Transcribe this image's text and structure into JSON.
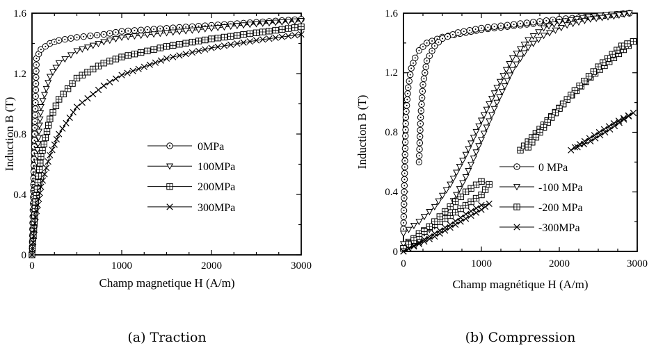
{
  "chart_data": [
    {
      "type": "line",
      "caption": "(a) Traction",
      "xlabel": "Champ magnetique H (A/m)",
      "ylabel": "Induction B (T)",
      "xlim": [
        0,
        3000
      ],
      "ylim": [
        0,
        1.6
      ],
      "xticks": [
        "0",
        "1000",
        "2000",
        "3000"
      ],
      "yticks": [
        "0",
        "0.4",
        "0.8",
        "1.2",
        "1.6"
      ],
      "legend_position": "center-right",
      "series": [
        {
          "name": "0MPa",
          "marker": "circle",
          "x": [
            0,
            20,
            50,
            100,
            200,
            300,
            500,
            800,
            1000,
            1500,
            2000,
            2500,
            3000
          ],
          "y": [
            0,
            0.55,
            1.3,
            1.36,
            1.4,
            1.42,
            1.44,
            1.46,
            1.48,
            1.5,
            1.52,
            1.54,
            1.56
          ]
        },
        {
          "name": "100MPa",
          "marker": "triangle-down",
          "x": [
            0,
            30,
            100,
            200,
            300,
            500,
            800,
            1000,
            1500,
            2000,
            2500,
            3000
          ],
          "y": [
            0,
            0.45,
            0.98,
            1.18,
            1.27,
            1.35,
            1.41,
            1.44,
            1.47,
            1.5,
            1.53,
            1.55
          ]
        },
        {
          "name": "200MPa",
          "marker": "square-plus",
          "x": [
            0,
            40,
            100,
            200,
            300,
            500,
            800,
            1000,
            1500,
            2000,
            2500,
            3000
          ],
          "y": [
            0,
            0.35,
            0.65,
            0.9,
            1.03,
            1.17,
            1.27,
            1.31,
            1.38,
            1.43,
            1.47,
            1.51
          ]
        },
        {
          "name": "300MPa",
          "marker": "x",
          "x": [
            0,
            40,
            100,
            200,
            300,
            500,
            800,
            1000,
            1500,
            2000,
            2500,
            3000
          ],
          "y": [
            0,
            0.25,
            0.45,
            0.66,
            0.8,
            0.98,
            1.12,
            1.19,
            1.3,
            1.37,
            1.42,
            1.46
          ]
        }
      ]
    },
    {
      "type": "line",
      "caption": "(b) Compression",
      "xlabel": "Champ magnétique H (A/m)",
      "ylabel": "Induction B (T)",
      "xlim": [
        0,
        3000
      ],
      "ylim": [
        0,
        1.6
      ],
      "xticks": [
        "0",
        "1000",
        "2000",
        "3000"
      ],
      "yticks": [
        "0",
        "0.4",
        "0.8",
        "1.2",
        "1.6"
      ],
      "legend_position": "bottom-right",
      "series": [
        {
          "name": "0 MPa",
          "marker": "circle",
          "loop": true,
          "x": [
            0,
            30,
            60,
            100,
            150,
            200,
            300,
            500,
            800,
            1000,
            1500,
            2000,
            2500,
            2900,
            2500,
            2000,
            1500,
            1000,
            700,
            500,
            400,
            300,
            250,
            220,
            200
          ],
          "y": [
            0.15,
            0.9,
            1.1,
            1.23,
            1.3,
            1.35,
            1.4,
            1.44,
            1.47,
            1.49,
            1.52,
            1.55,
            1.58,
            1.6,
            1.58,
            1.56,
            1.53,
            1.5,
            1.47,
            1.43,
            1.38,
            1.28,
            1.12,
            0.9,
            0.6
          ]
        },
        {
          "name": "-100 MPa",
          "marker": "triangle-down",
          "loop": true,
          "x": [
            0,
            200,
            400,
            600,
            800,
            1000,
            1200,
            1400,
            1600,
            1800,
            2000,
            2300,
            2600,
            2900,
            2700,
            2400,
            2100,
            1800,
            1600,
            1400,
            1200,
            1000,
            800,
            600,
            400,
            200,
            0
          ],
          "y": [
            0.12,
            0.2,
            0.3,
            0.45,
            0.65,
            0.88,
            1.1,
            1.3,
            1.42,
            1.5,
            1.54,
            1.57,
            1.59,
            1.6,
            1.58,
            1.56,
            1.52,
            1.45,
            1.37,
            1.22,
            1.0,
            0.75,
            0.5,
            0.3,
            0.17,
            0.1,
            0.05
          ]
        },
        {
          "name": "-200 MPa",
          "marker": "square-plus",
          "loop": true,
          "split": true,
          "x": [
            0,
            200,
            400,
            600,
            800,
            1000,
            1100,
            1000,
            800,
            600,
            400,
            200,
            0,
            null,
            1500,
            1800,
            2100,
            2400,
            2700,
            2950,
            2800,
            2500,
            2200,
            1900,
            1600
          ],
          "y": [
            0.02,
            0.12,
            0.18,
            0.24,
            0.31,
            0.38,
            0.45,
            0.47,
            0.4,
            0.3,
            0.2,
            0.1,
            0.02,
            null,
            0.68,
            0.85,
            1.02,
            1.17,
            1.3,
            1.41,
            1.38,
            1.24,
            1.08,
            0.9,
            0.7
          ]
        },
        {
          "name": "-300MPa",
          "marker": "x",
          "loop": true,
          "split": true,
          "x": [
            0,
            200,
            400,
            600,
            800,
            1000,
            1100,
            1000,
            800,
            600,
            400,
            200,
            0,
            null,
            2150,
            2400,
            2650,
            2950,
            2700,
            2450,
            2200
          ],
          "y": [
            0,
            0.05,
            0.1,
            0.16,
            0.22,
            0.28,
            0.32,
            0.31,
            0.25,
            0.18,
            0.12,
            0.06,
            0,
            null,
            0.68,
            0.74,
            0.82,
            0.93,
            0.86,
            0.78,
            0.7
          ]
        }
      ]
    }
  ]
}
